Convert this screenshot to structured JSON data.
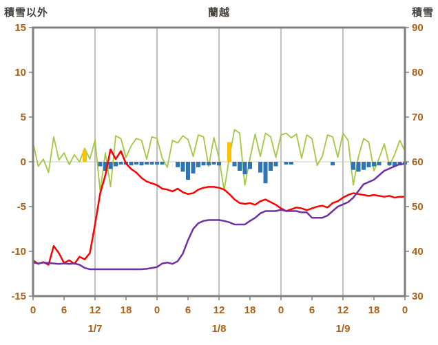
{
  "page": {
    "background": "#FFFFFF"
  },
  "chart_data": {
    "type": "line",
    "title": "蘭越",
    "colors": {
      "border": "#7F7F7F",
      "grid": "#9E9E9E",
      "zero_line": "#C9C9C9",
      "tick_text": "#AD5F16",
      "title_text": "#443F3A",
      "red_line": "#FF0000",
      "purple_line": "#7030A0",
      "green_line": "#A3C840",
      "blue_bar": "#2E75B6",
      "orange_bar": "#FFC000"
    },
    "left_axis": {
      "label": "積雪以外",
      "min": -15,
      "max": 15,
      "ticks": [
        "15",
        "10",
        "5",
        "0",
        "-5",
        "-10",
        "-15"
      ]
    },
    "right_axis": {
      "label": "積雪",
      "min": 30,
      "max": 90,
      "ticks": [
        "90",
        "80",
        "70",
        "60",
        "50",
        "40",
        "30"
      ]
    },
    "x_axis": {
      "min": 0,
      "max": 72,
      "hour_ticks": [
        0,
        6,
        12,
        18,
        24,
        30,
        36,
        42,
        48,
        54,
        60,
        66,
        72
      ],
      "hour_labels": [
        "0",
        "6",
        "12",
        "18",
        "0",
        "6",
        "12",
        "18",
        "0",
        "6",
        "12",
        "18",
        "0"
      ],
      "gridline_hours": [
        12,
        24,
        36,
        48,
        60
      ],
      "day_labels": [
        {
          "label": "1/7",
          "hour": 12
        },
        {
          "label": "1/8",
          "hour": 36
        },
        {
          "label": "1/9",
          "hour": 60
        }
      ]
    },
    "series": [
      {
        "name": "green-line",
        "type": "line",
        "axis": "left",
        "color": "#A3C840",
        "width": 1.8,
        "values": [
          2.2,
          -0.5,
          0.3,
          -1.2,
          2.8,
          0.2,
          1.0,
          -0.3,
          0.8,
          0.0,
          1.5,
          0.3,
          2.4,
          -3.3,
          1.0,
          -2.8,
          2.9,
          2.6,
          0.5,
          1.8,
          2.6,
          2.4,
          0.3,
          2.8,
          2.6,
          0.4,
          -0.6,
          2.4,
          2.1,
          2.9,
          2.5,
          0.6,
          3.0,
          2.8,
          -0.5,
          2.7,
          0.4,
          -3.2,
          0.5,
          3.6,
          3.2,
          -2.6,
          0.4,
          3.1,
          0.6,
          3.2,
          2.8,
          0.5,
          3.0,
          3.2,
          2.7,
          3.1,
          0.4,
          3.0,
          2.6,
          -0.4,
          0.6,
          3.0,
          2.8,
          0.5,
          3.2,
          2.4,
          -2.6,
          0.6,
          2.6,
          2.2,
          -1.0,
          0.4,
          2.0,
          -0.4,
          0.8,
          2.4,
          1.2
        ]
      },
      {
        "name": "blue-bars",
        "type": "bar",
        "axis": "left",
        "color": "#2E75B6",
        "points": [
          [
            13,
            -0.5
          ],
          [
            14,
            -1.0
          ],
          [
            15,
            -0.8
          ],
          [
            16,
            -0.5
          ],
          [
            17,
            -0.3
          ],
          [
            18,
            -0.3
          ],
          [
            19,
            -0.4
          ],
          [
            20,
            -0.3
          ],
          [
            21,
            -0.4
          ],
          [
            22,
            -0.3
          ],
          [
            23,
            -0.3
          ],
          [
            24,
            -0.3
          ],
          [
            25,
            -0.3
          ],
          [
            28,
            -0.6
          ],
          [
            29,
            -1.1
          ],
          [
            30,
            -2.0
          ],
          [
            31,
            -1.3
          ],
          [
            32,
            -0.6
          ],
          [
            33,
            -0.4
          ],
          [
            34,
            -0.4
          ],
          [
            35,
            -0.3
          ],
          [
            36,
            -0.4
          ],
          [
            39,
            -0.5
          ],
          [
            40,
            -1.0
          ],
          [
            41,
            -1.4
          ],
          [
            42,
            -0.8
          ],
          [
            44,
            -1.2
          ],
          [
            45,
            -2.4
          ],
          [
            46,
            -1.0
          ],
          [
            47,
            -0.5
          ],
          [
            49,
            -0.3
          ],
          [
            50,
            -0.3
          ],
          [
            58,
            -0.4
          ],
          [
            62,
            -0.9
          ],
          [
            63,
            -1.1
          ],
          [
            64,
            -0.9
          ],
          [
            65,
            -0.6
          ],
          [
            66,
            -0.5
          ],
          [
            67,
            -0.4
          ],
          [
            69,
            -0.4
          ],
          [
            70,
            -0.5
          ],
          [
            71,
            -0.4
          ],
          [
            72,
            -0.3
          ]
        ]
      },
      {
        "name": "orange-bars",
        "type": "bar",
        "axis": "left",
        "color": "#FFC000",
        "points": [
          [
            10,
            1.3
          ],
          [
            38,
            2.2
          ]
        ]
      },
      {
        "name": "red-line",
        "type": "line",
        "axis": "left",
        "color": "#FF0000",
        "width": 2.5,
        "values": [
          -11.0,
          -11.4,
          -11.2,
          -11.5,
          -9.4,
          -10.2,
          -11.3,
          -11.0,
          -11.4,
          -10.6,
          -10.9,
          -10.2,
          -7.0,
          -3.5,
          -1.5,
          1.4,
          0.3,
          1.2,
          -0.2,
          -0.8,
          -1.2,
          -1.8,
          -2.2,
          -2.4,
          -2.6,
          -3.0,
          -3.1,
          -3.3,
          -3.0,
          -3.4,
          -3.6,
          -3.5,
          -3.1,
          -2.9,
          -2.8,
          -2.8,
          -2.9,
          -3.1,
          -3.6,
          -4.2,
          -4.6,
          -4.7,
          -4.6,
          -4.8,
          -4.4,
          -4.2,
          -4.5,
          -4.8,
          -5.2,
          -5.5,
          -5.3,
          -5.1,
          -5.2,
          -5.4,
          -5.2,
          -5.0,
          -4.9,
          -5.1,
          -4.6,
          -4.4,
          -4.0,
          -3.7,
          -3.5,
          -3.6,
          -3.7,
          -3.8,
          -3.7,
          -3.8,
          -3.9,
          -3.8,
          -4.0,
          -3.9,
          -3.9
        ]
      },
      {
        "name": "purple-line",
        "type": "line",
        "axis": "right",
        "color": "#7030A0",
        "width": 2.5,
        "values": [
          37.5,
          37.3,
          37.5,
          37.4,
          37.3,
          37.2,
          37.3,
          37.2,
          37.3,
          37.0,
          36.3,
          36.0,
          36.0,
          36.0,
          36.0,
          36.0,
          36.0,
          36.0,
          36.0,
          36.0,
          36.0,
          36.0,
          36.1,
          36.3,
          36.5,
          37.3,
          37.5,
          37.2,
          37.8,
          39.5,
          42.5,
          45.0,
          46.3,
          46.8,
          47.0,
          47.0,
          47.0,
          46.8,
          46.5,
          46.0,
          46.0,
          46.0,
          46.8,
          47.5,
          48.5,
          49.0,
          49.0,
          49.0,
          49.3,
          49.0,
          49.0,
          49.0,
          48.7,
          48.7,
          47.5,
          47.5,
          47.5,
          48.0,
          49.0,
          50.0,
          50.5,
          51.0,
          52.0,
          53.5,
          55.0,
          55.5,
          56.0,
          57.0,
          58.0,
          58.5,
          59.0,
          59.5,
          59.5
        ]
      }
    ]
  }
}
